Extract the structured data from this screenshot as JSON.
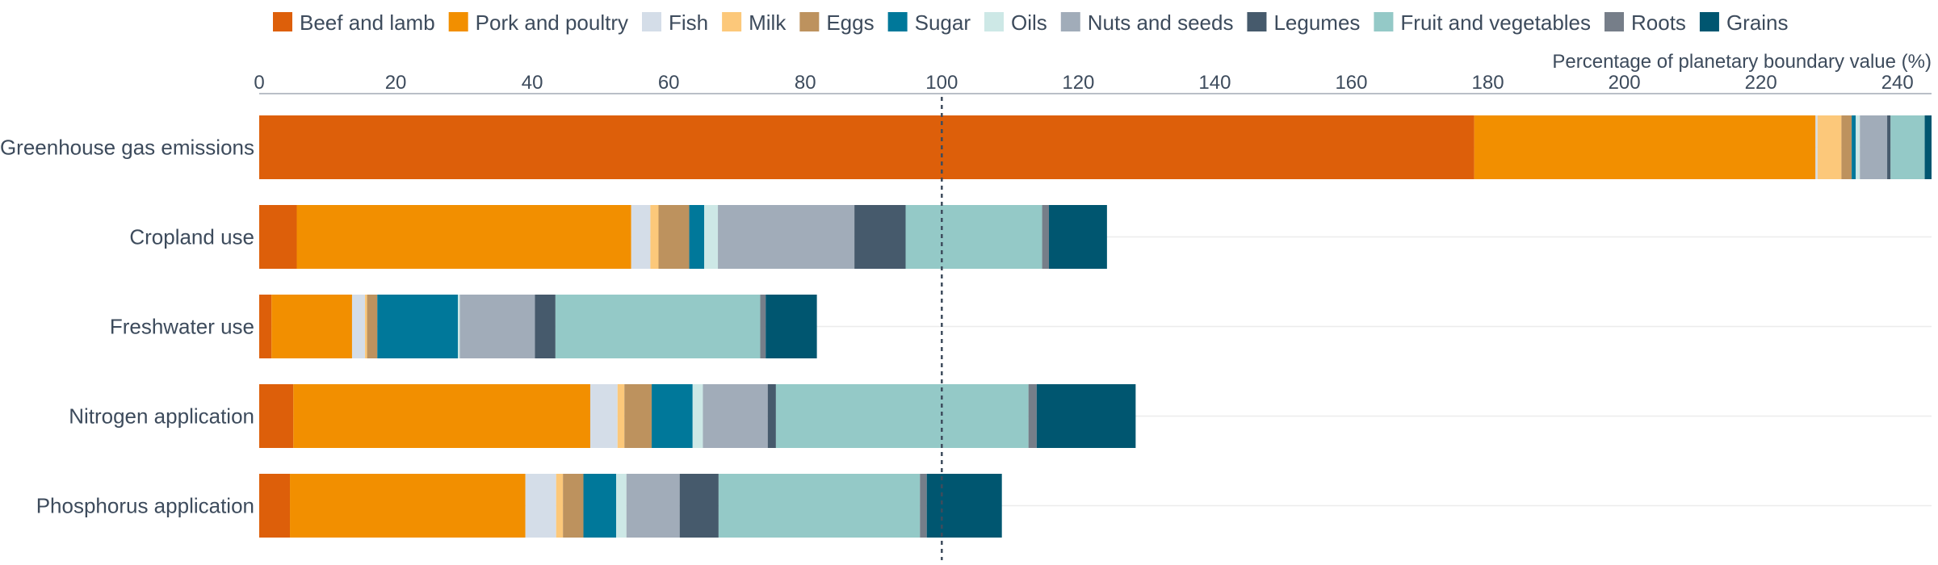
{
  "chart_data": {
    "type": "bar",
    "orientation": "horizontal",
    "stacked": true,
    "xlabel": "Percentage of planetary boundary value (%)",
    "xlim": [
      0,
      245
    ],
    "xticks": [
      0,
      20,
      40,
      60,
      80,
      100,
      120,
      140,
      160,
      180,
      200,
      220,
      240
    ],
    "reference_line": 100,
    "legend_position": "top",
    "grid": "horizontal-rows",
    "categories": [
      "Greenhouse gas emissions",
      "Cropland use",
      "Freshwater use",
      "Nitrogen application",
      "Phosphorus application"
    ],
    "series": [
      {
        "name": "Beef and lamb",
        "color": "#dd5f0a",
        "values": [
          178.0,
          5.5,
          1.8,
          5.0,
          4.5
        ]
      },
      {
        "name": "Pork and poultry",
        "color": "#f28f00",
        "values": [
          50.0,
          49.0,
          11.8,
          43.5,
          34.5
        ]
      },
      {
        "name": "Fish",
        "color": "#d4dde8",
        "values": [
          0.3,
          2.8,
          1.9,
          4.0,
          4.5
        ]
      },
      {
        "name": "Milk",
        "color": "#fcc87a",
        "values": [
          3.5,
          1.2,
          0.3,
          1.0,
          1.0
        ]
      },
      {
        "name": "Eggs",
        "color": "#bd925e",
        "values": [
          1.5,
          4.5,
          1.5,
          4.0,
          3.0
        ]
      },
      {
        "name": "Sugar",
        "color": "#00789a",
        "values": [
          0.6,
          2.2,
          11.8,
          6.0,
          4.8
        ]
      },
      {
        "name": "Oils",
        "color": "#cde8e6",
        "values": [
          0.6,
          2.0,
          0.3,
          1.5,
          1.5
        ]
      },
      {
        "name": "Nuts and seeds",
        "color": "#a1acb9",
        "values": [
          4.0,
          20.0,
          11.0,
          9.5,
          7.8
        ]
      },
      {
        "name": "Legumes",
        "color": "#465a6c",
        "values": [
          0.5,
          7.5,
          3.0,
          1.2,
          5.7
        ]
      },
      {
        "name": "Fruit and vegetables",
        "color": "#94c9c7",
        "values": [
          5.0,
          20.0,
          30.0,
          37.0,
          29.5
        ]
      },
      {
        "name": "Roots",
        "color": "#767e89",
        "values": [
          0.0,
          1.0,
          0.8,
          1.2,
          1.0
        ]
      },
      {
        "name": "Grains",
        "color": "#005670",
        "values": [
          1.0,
          8.5,
          7.5,
          14.5,
          11.0
        ]
      }
    ]
  }
}
